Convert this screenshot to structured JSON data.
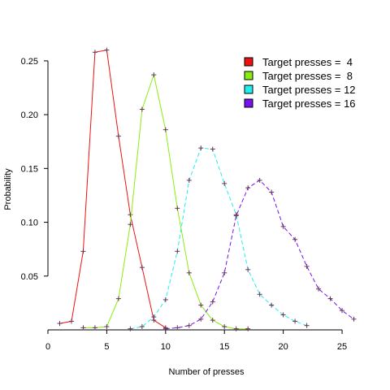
{
  "chart_data": {
    "type": "line",
    "xlabel": "Number of presses",
    "ylabel": "Probability",
    "xlim": [
      0,
      27
    ],
    "ylim": [
      0,
      0.262
    ],
    "x_ticks": [
      0,
      5,
      10,
      15,
      20,
      25
    ],
    "y_ticks": [
      0.05,
      0.1,
      0.15,
      0.2,
      0.25
    ],
    "y_tick_labels": [
      "0.05",
      "0.10",
      "0.15",
      "0.20",
      "0.25"
    ],
    "grid": false,
    "legend_position": "top-right",
    "marker_color": "#663355",
    "series": [
      {
        "name": "Target presses =  4",
        "color": "#ee1111",
        "dash": "solid",
        "x": [
          1,
          2,
          3,
          4,
          5,
          6,
          7,
          8,
          9,
          10
        ],
        "y": [
          0.006,
          0.008,
          0.073,
          0.258,
          0.26,
          0.18,
          0.107,
          0.058,
          0.009,
          0.002
        ]
      },
      {
        "name": "Target presses =  8",
        "color": "#88ee11",
        "dash": "solid",
        "x": [
          3,
          4,
          5,
          6,
          7,
          8,
          9,
          10,
          11,
          12,
          13,
          14,
          15,
          16,
          17
        ],
        "y": [
          0.002,
          0.002,
          0.003,
          0.029,
          0.098,
          0.205,
          0.237,
          0.186,
          0.113,
          0.053,
          0.023,
          0.009,
          0.003,
          0.001,
          0.001
        ]
      },
      {
        "name": "Target presses = 12",
        "color": "#22eeee",
        "dash": "dashed",
        "x": [
          7,
          8,
          9,
          10,
          11,
          12,
          13,
          14,
          15,
          16,
          17,
          18,
          19,
          20,
          21,
          22
        ],
        "y": [
          0.001,
          0.003,
          0.012,
          0.028,
          0.073,
          0.139,
          0.169,
          0.168,
          0.136,
          0.107,
          0.056,
          0.033,
          0.023,
          0.014,
          0.008,
          0.004
        ]
      },
      {
        "name": "Target presses = 16",
        "color": "#7711ee",
        "dash": "dashed",
        "x": [
          10,
          11,
          12,
          13,
          14,
          15,
          16,
          17,
          18,
          19,
          20,
          21,
          22,
          23,
          24,
          25,
          26
        ],
        "y": [
          0.001,
          0.002,
          0.004,
          0.01,
          0.026,
          0.053,
          0.106,
          0.132,
          0.139,
          0.128,
          0.096,
          0.084,
          0.059,
          0.038,
          0.029,
          0.018,
          0.01
        ]
      }
    ]
  }
}
